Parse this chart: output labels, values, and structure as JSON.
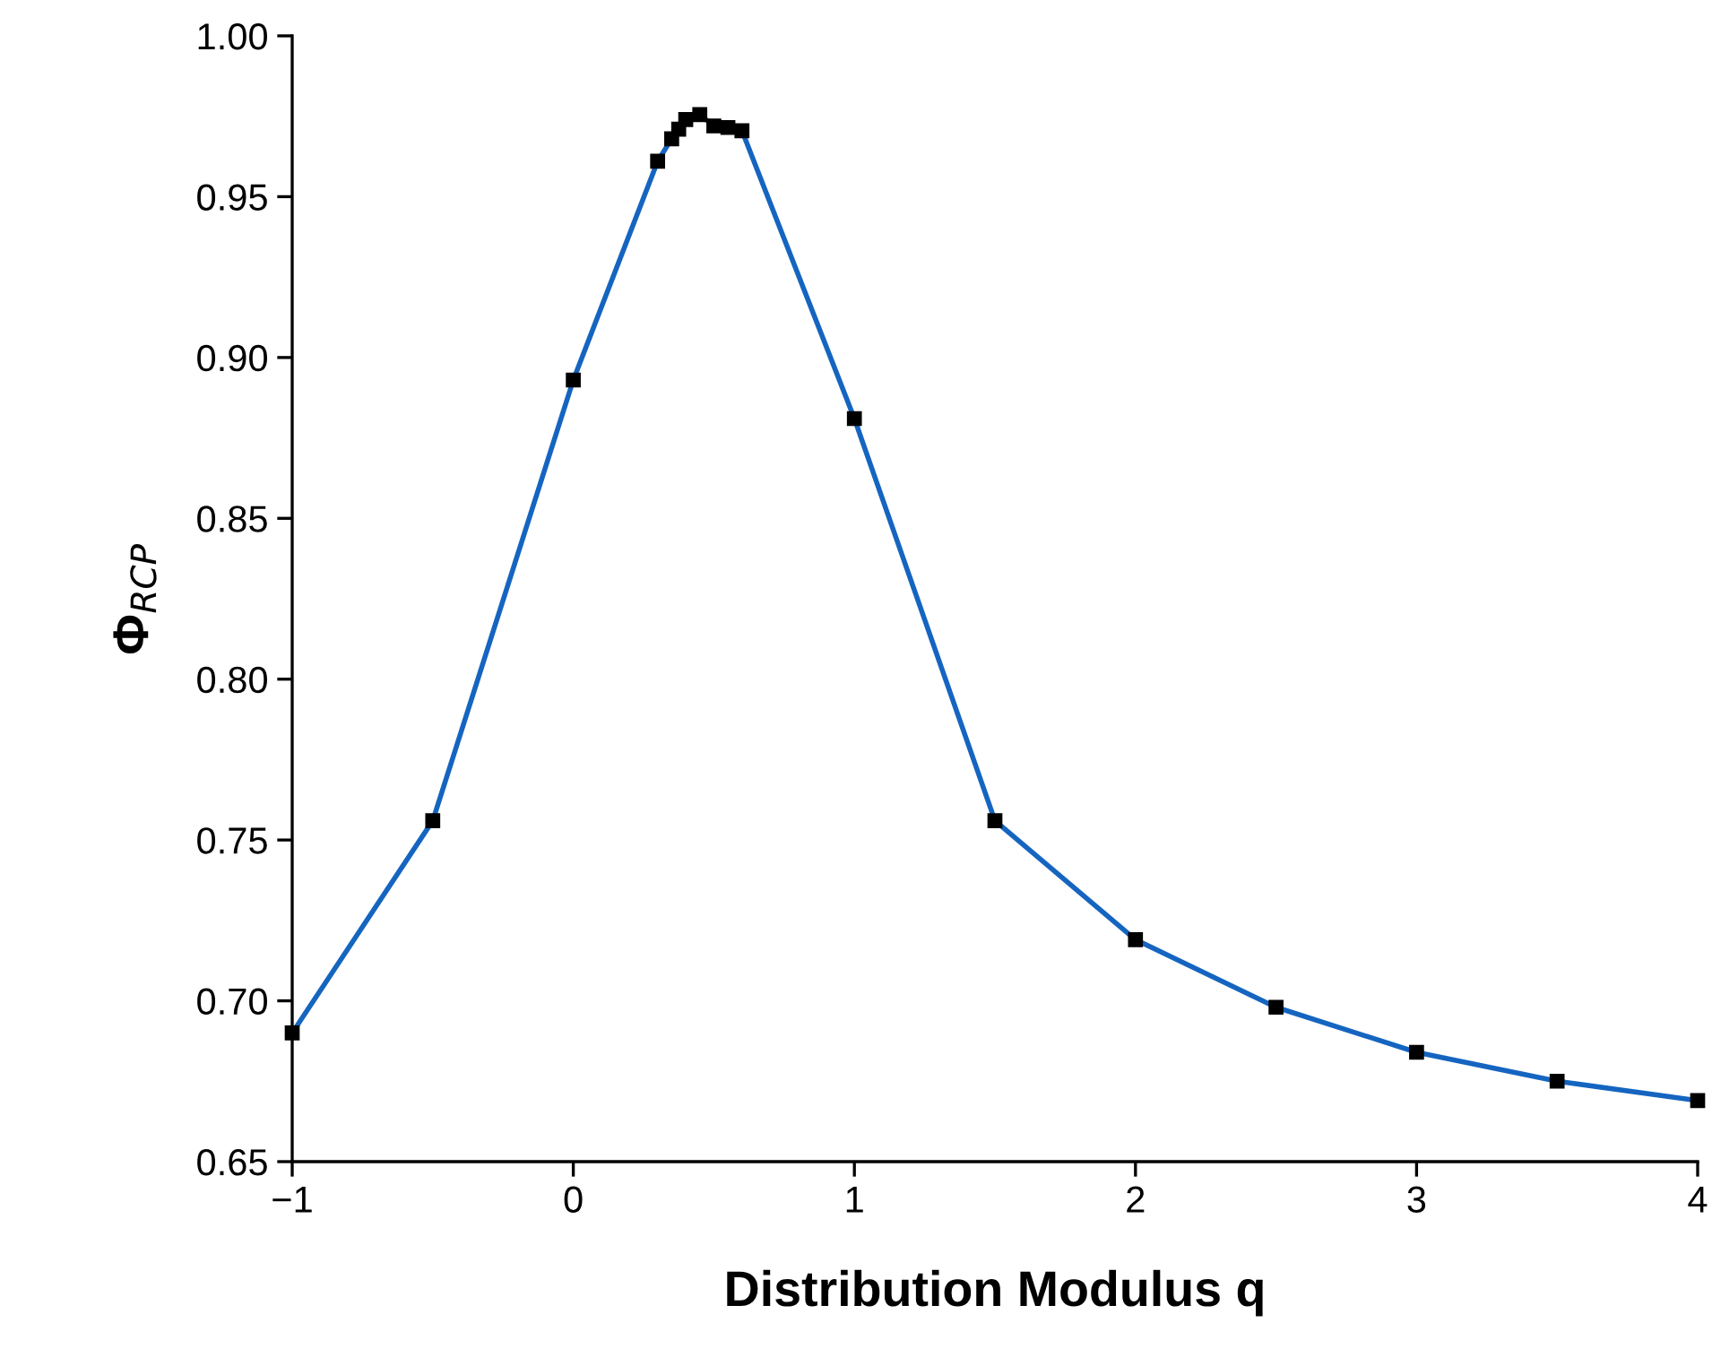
{
  "chart_data": {
    "type": "line",
    "xlabel": "Distribution Modulus q",
    "ylabel": "Φ$_{RCP}$",
    "x": [
      -1,
      -0.5,
      0,
      0.3,
      0.35,
      0.375,
      0.4,
      0.45,
      0.5,
      0.55,
      0.6,
      1,
      1.5,
      2,
      2.5,
      3,
      3.5,
      4
    ],
    "series": [
      {
        "color": "#1565c0",
        "values": [
          0.69,
          0.756,
          0.893,
          0.961,
          0.968,
          0.971,
          0.974,
          0.9755,
          0.972,
          0.9715,
          0.9705,
          0.881,
          0.756,
          0.719,
          0.698,
          0.684,
          0.675,
          0.669
        ]
      }
    ],
    "marker": "square",
    "xlim": [
      -1,
      4
    ],
    "ylim": [
      0.65,
      1.0
    ],
    "xticks": [
      {
        "value": -1,
        "label": "−1"
      },
      0,
      1,
      2,
      3,
      4
    ],
    "yticks": [
      {
        "value": 0.65,
        "label": "0.65"
      },
      {
        "value": 0.7,
        "label": "0.70"
      },
      {
        "value": 0.75,
        "label": "0.75"
      },
      {
        "value": 0.8,
        "label": "0.80"
      },
      {
        "value": 0.85,
        "label": "0.85"
      },
      {
        "value": 0.9,
        "label": "0.90"
      },
      {
        "value": 0.95,
        "label": "0.95"
      },
      {
        "value": 1.0,
        "label": "1.00"
      }
    ],
    "grid": false,
    "legend": false
  }
}
